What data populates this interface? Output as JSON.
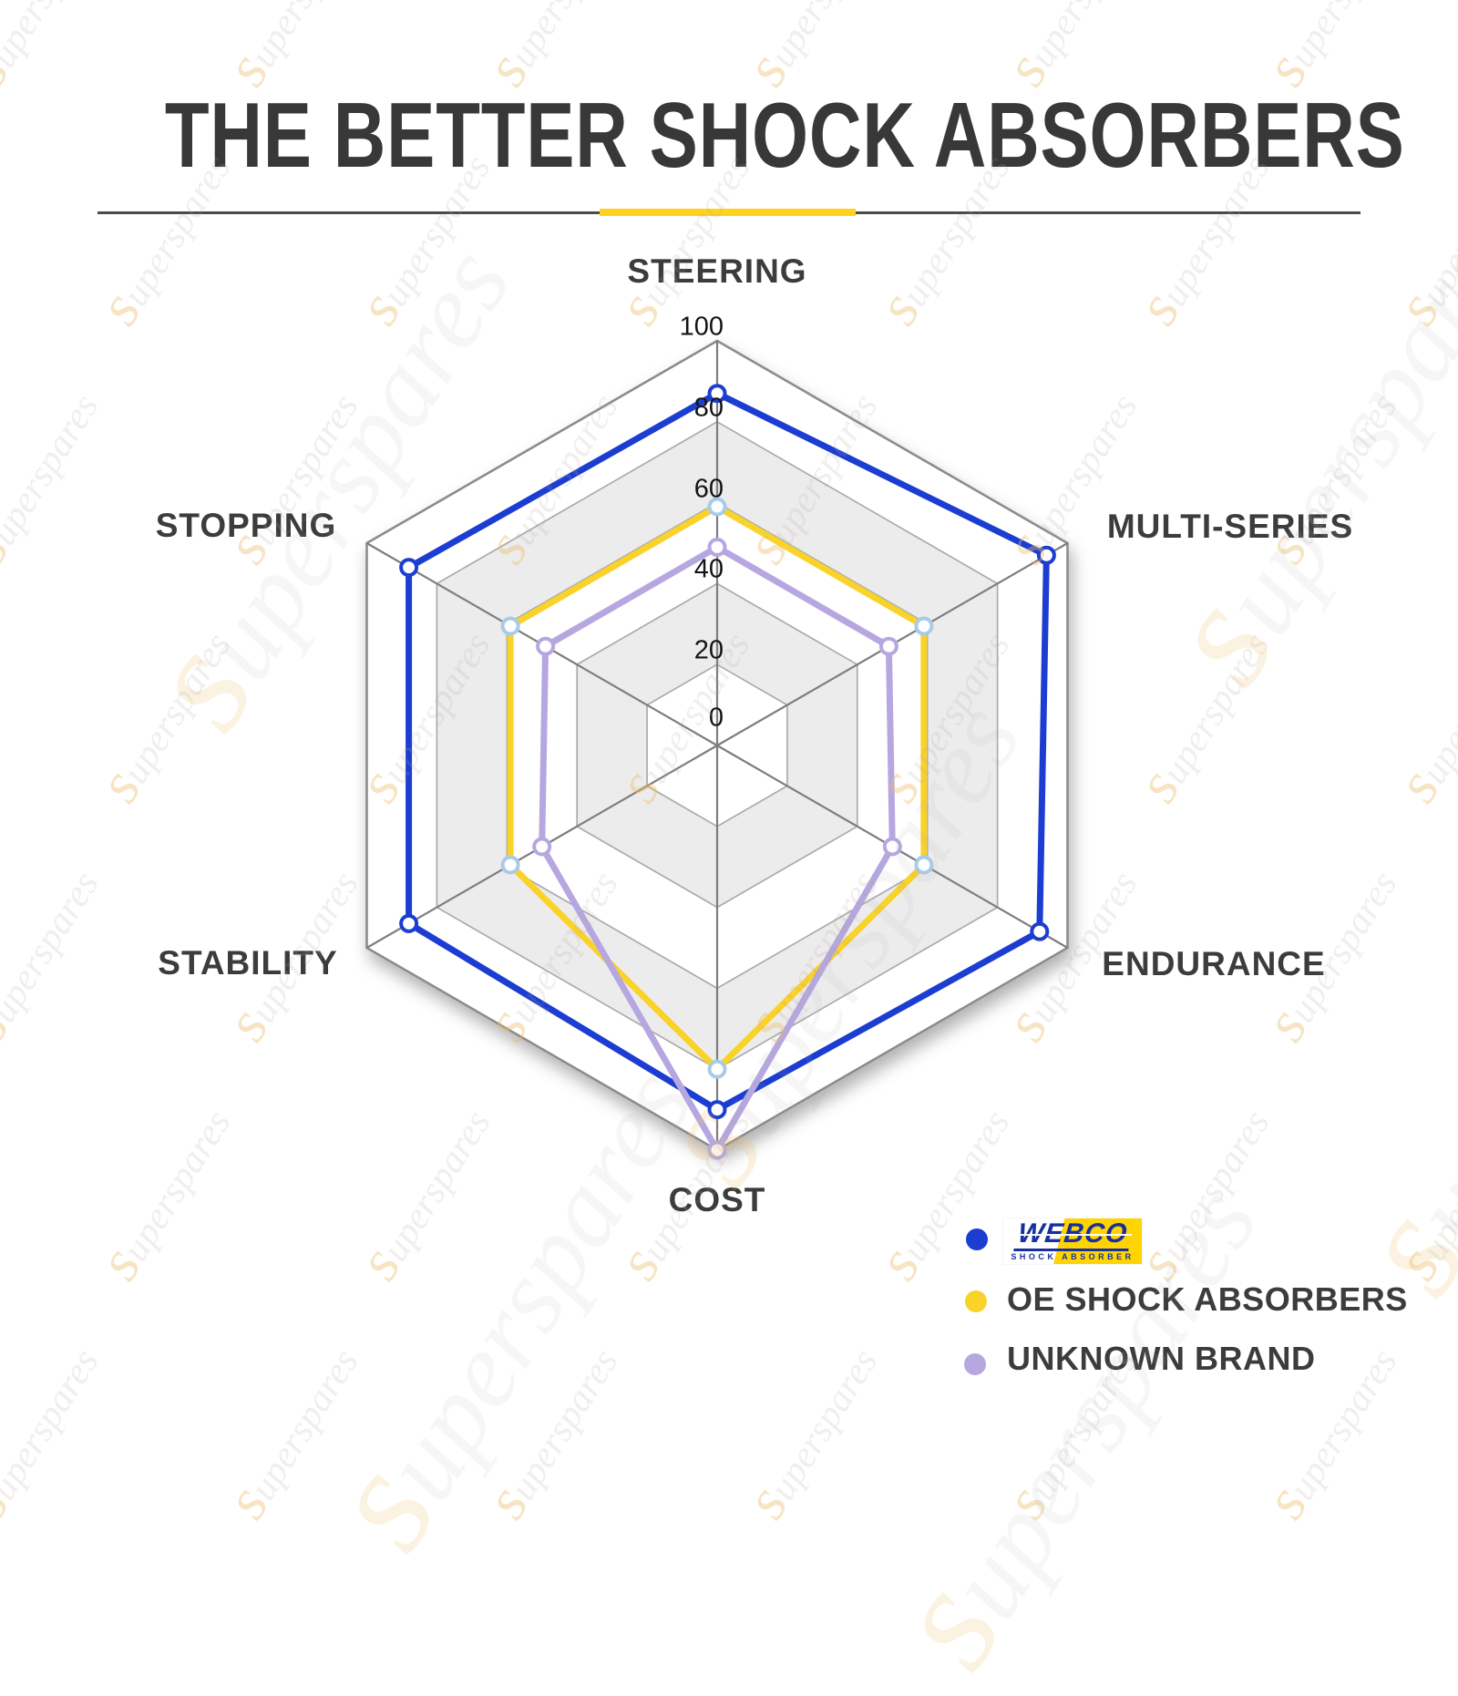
{
  "title": "THE BETTER SHOCK ABSORBERS",
  "divider": {
    "line_color": "#4a4a4a",
    "accent_color": "#FFD21E"
  },
  "watermark": {
    "text": "superspares"
  },
  "chart_data": {
    "type": "radar",
    "categories": [
      "STEERING",
      "MULTI-SERIES",
      "ENDURANCE",
      "COST",
      "STABILITY",
      "STOPPING"
    ],
    "ticks": [
      0,
      20,
      40,
      60,
      80,
      100
    ],
    "axis_range": [
      0,
      100
    ],
    "grid": {
      "shape": "hexagon",
      "bands": [
        "#ffffff",
        "#ececec",
        "#ffffff",
        "#ececec",
        "#ffffff"
      ],
      "ring_stroke": "#ABABAB",
      "outer_stroke": "#8C8C8C",
      "spoke_stroke": "#7E7E7E"
    },
    "series": [
      {
        "name": "WEBCO",
        "color": "#1C3DD1",
        "marker_stroke": "#1C3DD1",
        "values": [
          87,
          94,
          92,
          90,
          88,
          88
        ]
      },
      {
        "name": "OE SHOCK ABSORBERS",
        "color": "#F9D22A",
        "marker_stroke": "#A8CBEA",
        "values": [
          59,
          59,
          59,
          80,
          59,
          59
        ]
      },
      {
        "name": "UNKNOWN BRAND",
        "color": "#B6A7E0",
        "marker_stroke": "#B6A7E0",
        "values": [
          49,
          49,
          50,
          100,
          50,
          49
        ]
      }
    ],
    "legend_position": "bottom-right"
  },
  "legend": {
    "items": [
      {
        "dot_color": "#1C3DD1",
        "type": "logo",
        "logo": {
          "brand": "WEBCO",
          "subtext": "SHOCK ABSORBER",
          "bg": "#FFD400",
          "fg": "#16309E"
        }
      },
      {
        "dot_color": "#F9D22A",
        "label": "OE SHOCK ABSORBERS"
      },
      {
        "dot_color": "#B6A7E0",
        "label": "UNKNOWN BRAND"
      }
    ]
  }
}
